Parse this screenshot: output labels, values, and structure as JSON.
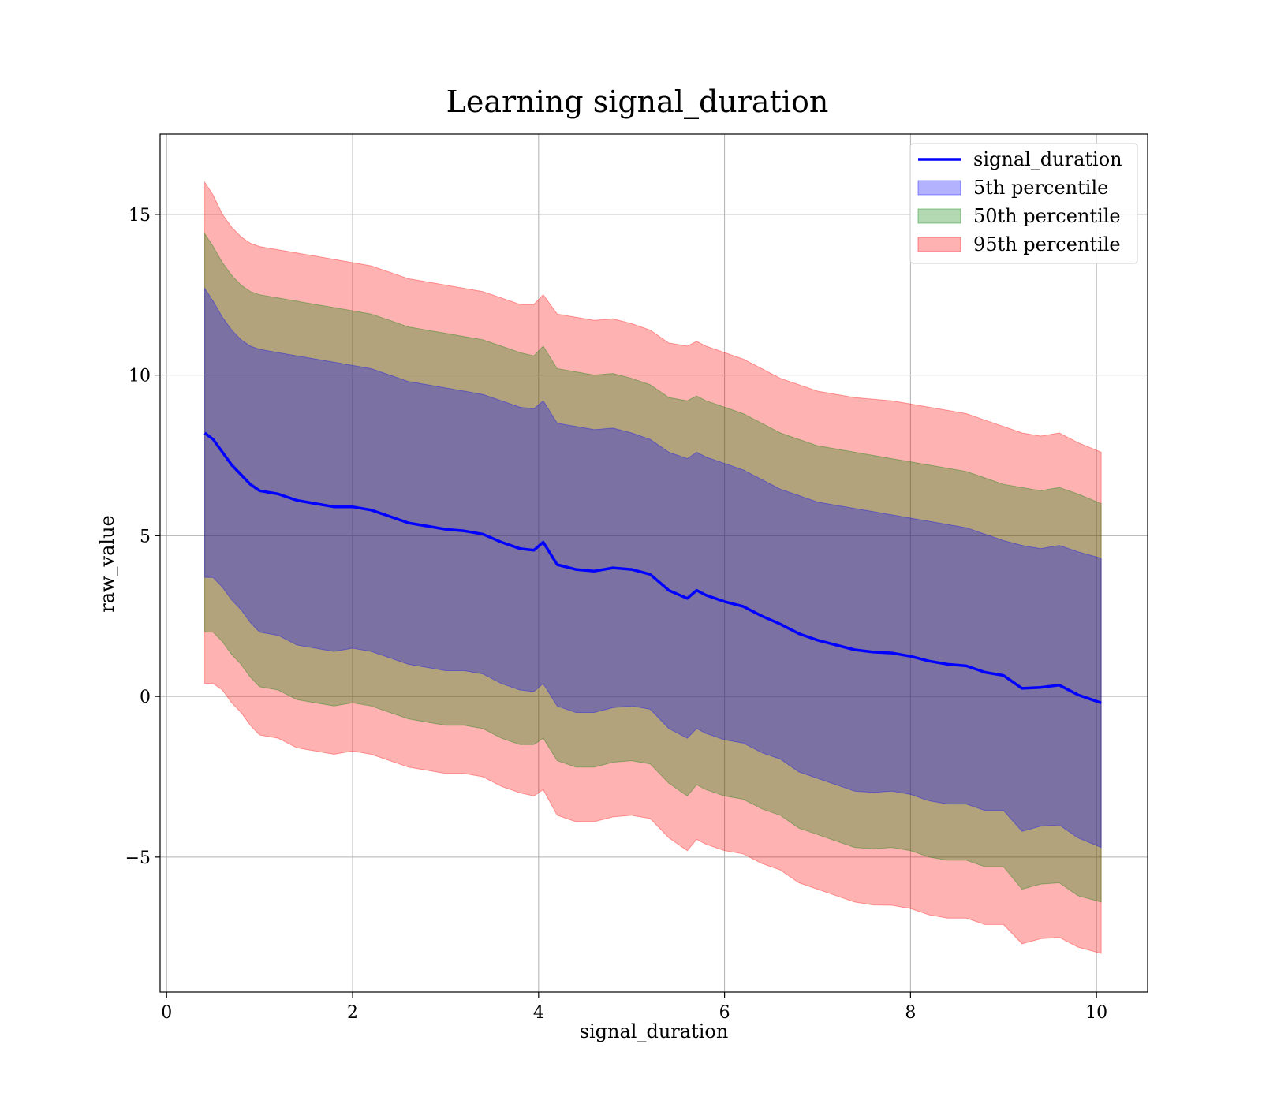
{
  "chart_data": {
    "type": "area",
    "title": "Learning signal_duration",
    "xlabel": "signal_duration",
    "ylabel": "raw_value",
    "xlim": [
      -0.07,
      10.55
    ],
    "ylim": [
      -9.2,
      17.5
    ],
    "x_ticks": [
      0,
      2,
      4,
      6,
      8,
      10
    ],
    "y_ticks": [
      -5,
      0,
      5,
      10,
      15
    ],
    "x_tick_labels": [
      "0",
      "2",
      "4",
      "6",
      "8",
      "10"
    ],
    "y_tick_labels": [
      "−5",
      "0",
      "5",
      "10",
      "15"
    ],
    "grid": true,
    "legend_position": "top-right",
    "x": [
      0.41,
      0.5,
      0.6,
      0.7,
      0.8,
      0.9,
      1.0,
      1.2,
      1.4,
      1.6,
      1.8,
      2.0,
      2.2,
      2.4,
      2.6,
      2.8,
      3.0,
      3.2,
      3.4,
      3.6,
      3.8,
      3.95,
      4.05,
      4.2,
      4.4,
      4.6,
      4.8,
      5.0,
      5.2,
      5.4,
      5.6,
      5.7,
      5.8,
      6.0,
      6.2,
      6.4,
      6.6,
      6.8,
      7.0,
      7.2,
      7.4,
      7.6,
      7.8,
      8.0,
      8.2,
      8.4,
      8.6,
      8.8,
      9.0,
      9.2,
      9.4,
      9.6,
      9.8,
      10.05
    ],
    "line": {
      "name": "signal_duration",
      "color": "#0000ff",
      "values": [
        8.2,
        8.0,
        7.6,
        7.2,
        6.9,
        6.6,
        6.4,
        6.3,
        6.1,
        6.0,
        5.9,
        5.9,
        5.8,
        5.6,
        5.4,
        5.3,
        5.2,
        5.15,
        5.05,
        4.8,
        4.6,
        4.55,
        4.8,
        4.1,
        3.95,
        3.9,
        4.0,
        3.95,
        3.8,
        3.3,
        3.05,
        3.3,
        3.15,
        2.95,
        2.8,
        2.5,
        2.25,
        1.95,
        1.75,
        1.6,
        1.45,
        1.38,
        1.35,
        1.25,
        1.1,
        1.0,
        0.95,
        0.75,
        0.65,
        0.25,
        0.28,
        0.35,
        0.05,
        -0.2
      ]
    },
    "bands": [
      {
        "name": "95th percentile",
        "color": "#ff0000",
        "opacity": 0.3,
        "upper": [
          16.0,
          15.6,
          15.0,
          14.6,
          14.3,
          14.1,
          14.0,
          13.9,
          13.8,
          13.7,
          13.6,
          13.5,
          13.4,
          13.2,
          13.0,
          12.9,
          12.8,
          12.7,
          12.6,
          12.4,
          12.2,
          12.2,
          12.5,
          11.9,
          11.8,
          11.7,
          11.75,
          11.6,
          11.4,
          11.0,
          10.9,
          11.05,
          10.9,
          10.7,
          10.5,
          10.2,
          9.9,
          9.7,
          9.5,
          9.4,
          9.3,
          9.25,
          9.2,
          9.1,
          9.0,
          8.9,
          8.8,
          8.6,
          8.4,
          8.2,
          8.1,
          8.2,
          7.9,
          7.6
        ]
      },
      {
        "name": "50th percentile",
        "color": "#008000",
        "opacity": 0.3,
        "upper": [
          14.4,
          14.0,
          13.5,
          13.1,
          12.8,
          12.6,
          12.5,
          12.4,
          12.3,
          12.2,
          12.1,
          12.0,
          11.9,
          11.7,
          11.5,
          11.4,
          11.3,
          11.2,
          11.1,
          10.9,
          10.7,
          10.6,
          10.9,
          10.2,
          10.1,
          10.0,
          10.05,
          9.9,
          9.7,
          9.3,
          9.2,
          9.35,
          9.2,
          9.0,
          8.8,
          8.5,
          8.2,
          8.0,
          7.8,
          7.7,
          7.6,
          7.5,
          7.4,
          7.3,
          7.2,
          7.1,
          7.0,
          6.8,
          6.6,
          6.5,
          6.4,
          6.5,
          6.3,
          6.0
        ]
      },
      {
        "name": "5th percentile",
        "color": "#0000ff",
        "opacity": 0.3,
        "upper": [
          12.7,
          12.3,
          11.8,
          11.4,
          11.1,
          10.9,
          10.8,
          10.7,
          10.6,
          10.5,
          10.4,
          10.3,
          10.2,
          10.0,
          9.8,
          9.7,
          9.6,
          9.5,
          9.4,
          9.2,
          9.0,
          8.95,
          9.2,
          8.5,
          8.4,
          8.3,
          8.35,
          8.2,
          8.0,
          7.6,
          7.4,
          7.6,
          7.45,
          7.25,
          7.05,
          6.75,
          6.45,
          6.25,
          6.05,
          5.95,
          5.85,
          5.75,
          5.65,
          5.55,
          5.45,
          5.35,
          5.25,
          5.05,
          4.85,
          4.7,
          4.6,
          4.7,
          4.5,
          4.3
        ]
      }
    ],
    "legend": [
      {
        "name": "signal_duration",
        "kind": "line",
        "color": "#0000ff"
      },
      {
        "name": "5th percentile",
        "kind": "patch",
        "color": "#0000ff"
      },
      {
        "name": "50th percentile",
        "kind": "patch",
        "color": "#008000"
      },
      {
        "name": "95th percentile",
        "kind": "patch",
        "color": "#ff0000"
      }
    ]
  }
}
